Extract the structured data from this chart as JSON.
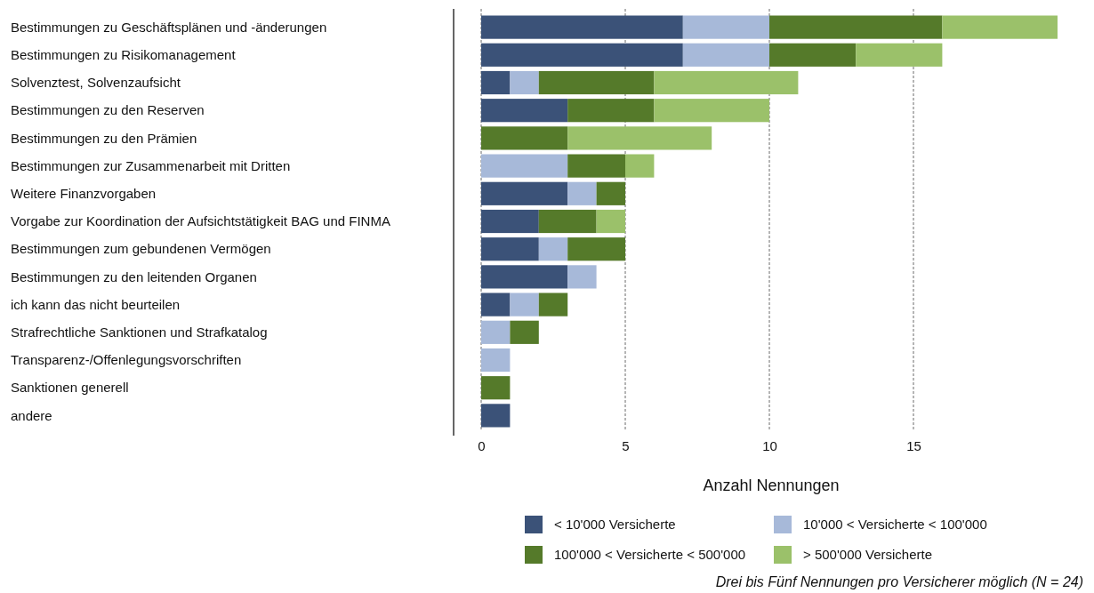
{
  "chart_data": {
    "type": "bar",
    "orientation": "horizontal",
    "stacked": true,
    "categories": [
      "Bestimmungen zu Geschäftsplänen und -änderungen",
      "Bestimmungen zu Risikomanagement",
      "Solvenztest, Solvenzaufsicht",
      "Bestimmungen zu den Reserven",
      "Bestimmungen zu den Prämien",
      "Bestimmungen zur Zusammenarbeit mit Dritten",
      "Weitere Finanzvorgaben",
      "Vorgabe zur Koordination der Aufsichtstätigkeit BAG und FINMA",
      "Bestimmungen zum gebundenen Vermögen",
      "Bestimmungen zu den leitenden Organen",
      "ich kann das nicht beurteilen",
      "Strafrechtliche Sanktionen und Strafkatalog",
      "Transparenz-/Offenlegungsvorschriften",
      "Sanktionen generell",
      "andere"
    ],
    "series": [
      {
        "name": "< 10'000 Versicherte",
        "color": "#3b5278",
        "values": [
          7,
          7,
          1,
          3,
          0,
          0,
          3,
          2,
          2,
          3,
          1,
          0,
          0,
          0,
          1
        ]
      },
      {
        "name": "10'000 < Versicherte < 100'000",
        "color": "#a7b9d9",
        "values": [
          3,
          3,
          1,
          0,
          0,
          3,
          1,
          0,
          1,
          1,
          1,
          1,
          1,
          0,
          0
        ]
      },
      {
        "name": "100'000 < Versicherte < 500'000",
        "color": "#557a2a",
        "values": [
          6,
          3,
          4,
          3,
          3,
          2,
          1,
          2,
          2,
          0,
          1,
          1,
          0,
          1,
          0
        ]
      },
      {
        "name": "> 500'000 Versicherte",
        "color": "#9bc16a",
        "values": [
          4,
          3,
          5,
          4,
          5,
          1,
          0,
          1,
          0,
          0,
          0,
          0,
          0,
          0,
          0
        ]
      }
    ],
    "xlim": [
      0,
      20
    ],
    "xticks": [
      0,
      5,
      10,
      15
    ],
    "xlabel": "Anzahl Nennungen",
    "grid": "x",
    "legend": "bottom",
    "annotations": [
      "Drei bis Fünf Nennungen pro Versicherer möglich (N = 24)"
    ]
  }
}
